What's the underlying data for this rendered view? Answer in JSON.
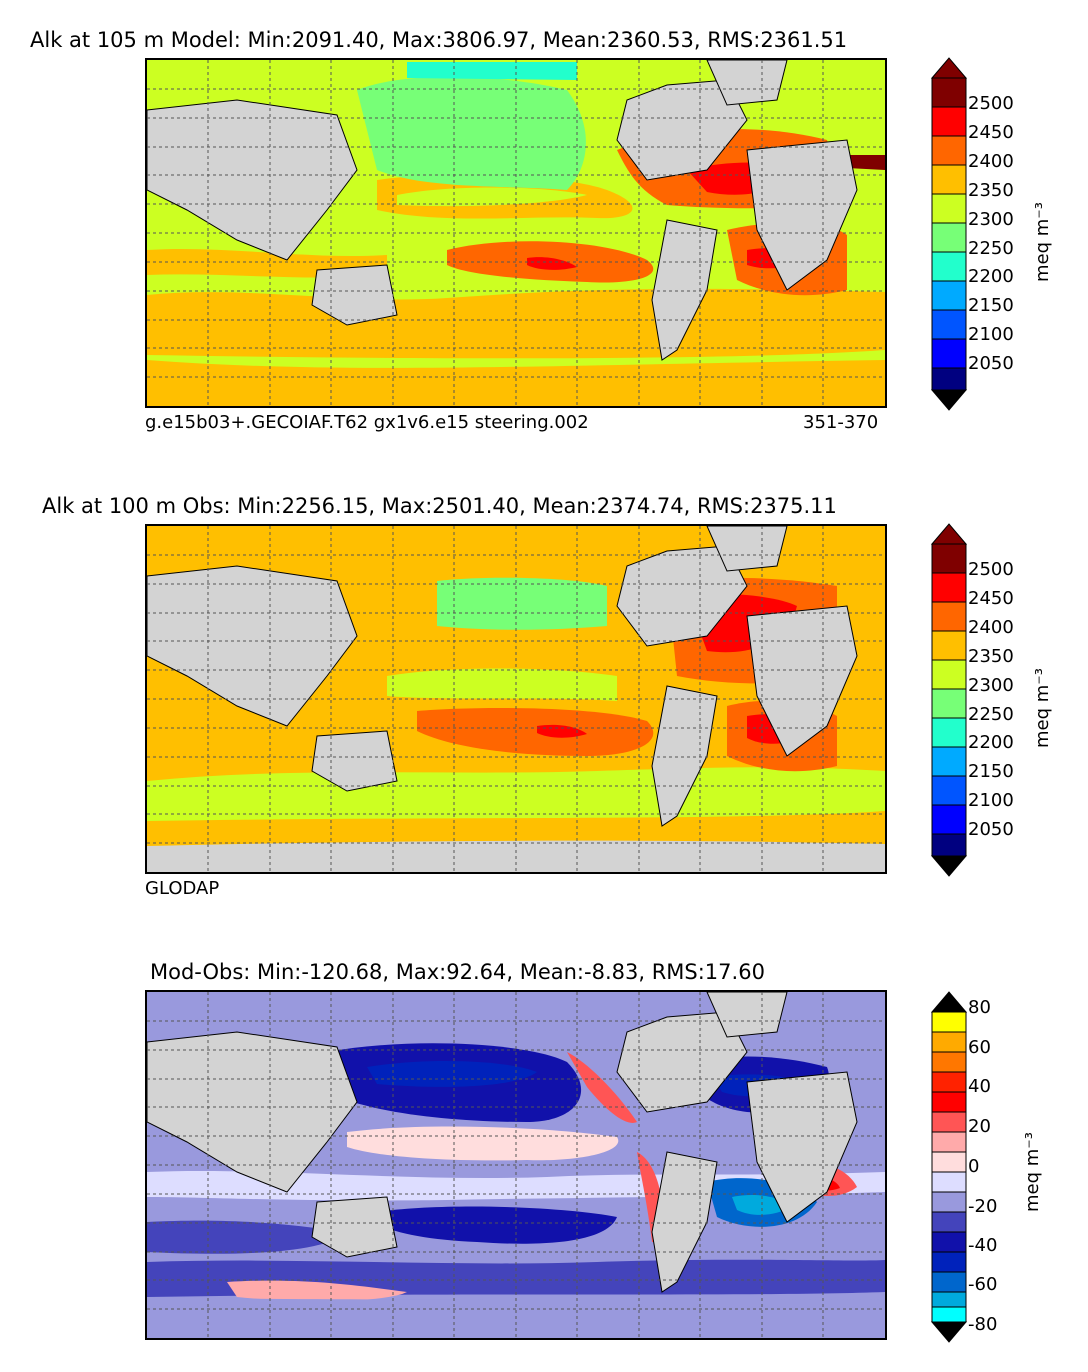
{
  "panels": [
    {
      "title": "Alk at 105 m Model: Min:2091.40, Max:3806.97, Mean:2360.53, RMS:2361.51",
      "footer_left": "g.e15b03+.GECOIAF.T62 gx1v6.e15 steering.002",
      "footer_right": "351-370",
      "colorbar": {
        "unit": "meq m⁻³",
        "ticks": [
          "2500",
          "2450",
          "2400",
          "2350",
          "2300",
          "2250",
          "2200",
          "2150",
          "2100",
          "2050"
        ],
        "colors": [
          "#7f0000",
          "#ff0000",
          "#ff6600",
          "#ffbf00",
          "#ccff22",
          "#77ff77",
          "#22ffcc",
          "#00aaff",
          "#0055ff",
          "#0000ff",
          "#000080"
        ]
      }
    },
    {
      "title": "Alk at 100 m Obs: Min:2256.15, Max:2501.40, Mean:2374.74, RMS:2375.11",
      "footer_left": "GLODAP",
      "footer_right": "",
      "colorbar": {
        "unit": "meq m⁻³",
        "ticks": [
          "2500",
          "2450",
          "2400",
          "2350",
          "2300",
          "2250",
          "2200",
          "2150",
          "2100",
          "2050"
        ],
        "colors": [
          "#7f0000",
          "#ff0000",
          "#ff6600",
          "#ffbf00",
          "#ccff22",
          "#77ff77",
          "#22ffcc",
          "#00aaff",
          "#0055ff",
          "#0000ff",
          "#000080"
        ]
      }
    },
    {
      "title": "Mod-Obs: Min:-120.68, Max:92.64, Mean:-8.83, RMS:17.60",
      "footer_left": "",
      "footer_right": "",
      "colorbar": {
        "unit": "meq m⁻³",
        "ticks": [
          "80",
          "60",
          "40",
          "20",
          "0",
          "-20",
          "-40",
          "-60",
          "-80"
        ],
        "colors": [
          "#ffff00",
          "#ffaa00",
          "#ff5500",
          "#ff0000",
          "#ff5555",
          "#ffaaaa",
          "#ffdddd",
          "#ddddff",
          "#9999dd",
          "#4444bb",
          "#1111aa",
          "#0022bb",
          "#0066cc",
          "#00aadd",
          "#00ffff"
        ]
      }
    }
  ],
  "colors": {
    "land": "#d3d3d3",
    "grid": "#555555"
  }
}
